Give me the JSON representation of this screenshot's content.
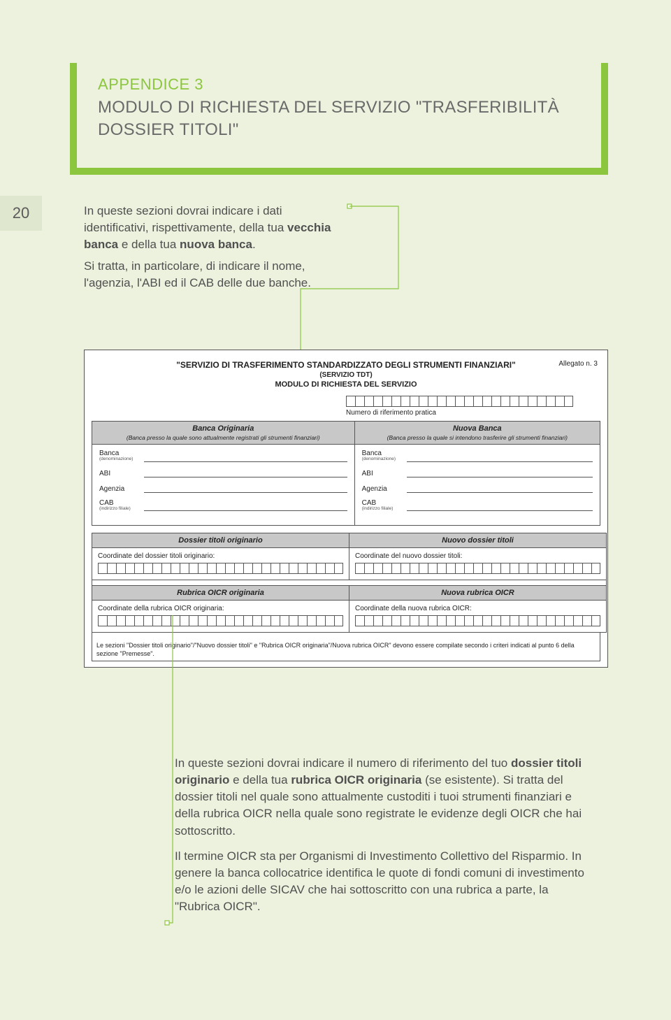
{
  "page_number": "20",
  "title": {
    "appendix": "APPENDICE 3",
    "main": "MODULO DI RICHIESTA DEL SERVIZIO \"TRASFERIBILITÀ DOSSIER TITOLI\""
  },
  "intro": {
    "p1_a": "In queste sezioni dovrai indicare i dati identificativi, rispettivamente, della tua ",
    "p1_b": "vecchia banca",
    "p1_c": " e della tua ",
    "p1_d": "nuova banca",
    "p1_e": ".",
    "p2": "Si tratta, in particolare, di indicare il nome, l'agenzia, l'ABI ed il CAB delle due banche."
  },
  "form": {
    "allegato": "Allegato n. 3",
    "svc_title": "\"SERVIZIO DI TRASFERIMENTO STANDARDIZZATO DEGLI STRUMENTI FINANZIARI\"",
    "svc_sub": "(SERVIZIO TDT)",
    "svc_mod": "MODULO DI RICHIESTA DEL SERVIZIO",
    "ref_label": "Numero di riferimento pratica",
    "ref_cells": 25,
    "bank_orig": {
      "header": "Banca Originaria",
      "sub": "(Banca presso la quale sono attualmente registrati gli strumenti finanziari)"
    },
    "bank_new": {
      "header": "Nuova Banca",
      "sub": "(Banca presso la quale si intendono trasferire gli strumenti finanziari)"
    },
    "fields": {
      "banca": "Banca",
      "banca_tiny": "(denominazione)",
      "abi": "ABI",
      "agenzia": "Agenzia",
      "cab": "CAB",
      "cab_tiny": "(indirizzo filiale)"
    },
    "dossier": {
      "orig_header": "Dossier titoli originario",
      "new_header": "Nuovo dossier titoli",
      "orig_label": "Coordinate del dossier titoli originario:",
      "new_label": "Coordinate del nuovo dossier titoli:",
      "cells": 27
    },
    "rubrica": {
      "orig_header": "Rubrica OICR originaria",
      "new_header": "Nuova rubrica OICR",
      "orig_label": "Coordinate della rubrica OICR originaria:",
      "new_label": "Coordinate della nuova rubrica OICR:",
      "cells": 27
    },
    "note": "Le sezioni \"Dossier titoli originario\"/\"Nuovo dossier titoli\" e \"Rubrica OICR originaria\"/Nuova rubrica OICR\" devono essere compilate secondo i criteri indicati al punto 6 della sezione \"Premesse\"."
  },
  "bottom": {
    "p1_a": "In queste sezioni dovrai indicare il numero di riferimento del tuo ",
    "p1_b": "dossier titoli originario",
    "p1_c": " e della tua ",
    "p1_d": "rubrica OICR originaria",
    "p1_e": " (se esistente). Si tratta del dossier titoli nel quale sono attualmente custoditi i tuoi strumenti finanziari e della rubrica OICR nella quale sono registrate le evidenze degli OICR che hai sottoscritto.",
    "p2": "Il termine OICR sta per Organismi di Investimento Collettivo del Risparmio. In genere la banca collocatrice identifica le quote di fondi comuni di investimento e/o le azioni delle SICAV che hai sottoscritto con una rubrica a parte, la \"Rubrica OICR\"."
  },
  "colors": {
    "accent": "#8cc63f",
    "page_bg": "#edf2de",
    "page_num_bg": "#dfe7cf",
    "text": "#505050",
    "form_header_bg": "#c8c8c8"
  }
}
